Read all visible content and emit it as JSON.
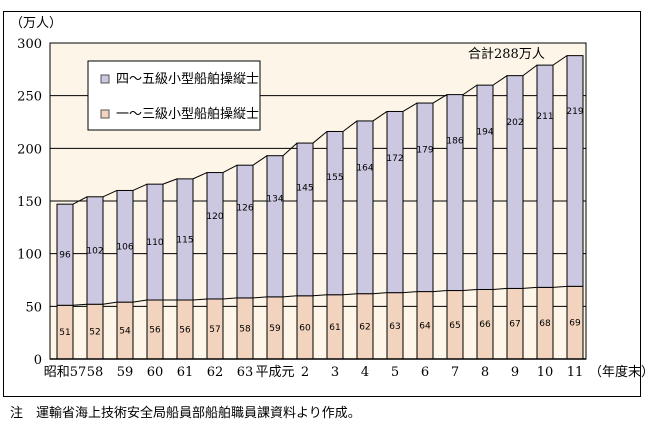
{
  "chart_data": {
    "type": "bar",
    "stacked": true,
    "ylabel": "（万人）",
    "xlabel": "（年度末）",
    "ylim": [
      0,
      300
    ],
    "yticks": [
      0,
      50,
      100,
      150,
      200,
      250,
      300
    ],
    "grid": true,
    "legend_position": "top-left",
    "categories": [
      "昭和57",
      "58",
      "59",
      "60",
      "61",
      "62",
      "63",
      "平成元",
      "2",
      "3",
      "4",
      "5",
      "6",
      "7",
      "8",
      "9",
      "10",
      "11"
    ],
    "series": [
      {
        "name": "一～三級小型船舶操縦士",
        "color": "#f2d3bd",
        "values": [
          51,
          52,
          54,
          56,
          56,
          57,
          58,
          59,
          60,
          61,
          62,
          63,
          64,
          65,
          66,
          67,
          68,
          69
        ]
      },
      {
        "name": "四～五級小型船舶操縦士",
        "color": "#cdc8e2",
        "values": [
          96,
          102,
          106,
          110,
          115,
          120,
          126,
          134,
          145,
          155,
          164,
          172,
          179,
          186,
          194,
          202,
          211,
          219
        ]
      }
    ],
    "annotation": "合計288万人",
    "plot_background": "#fdf6e8"
  },
  "note": "注　運輸省海上技術安全局船員部船舶職員課資料より作成。"
}
